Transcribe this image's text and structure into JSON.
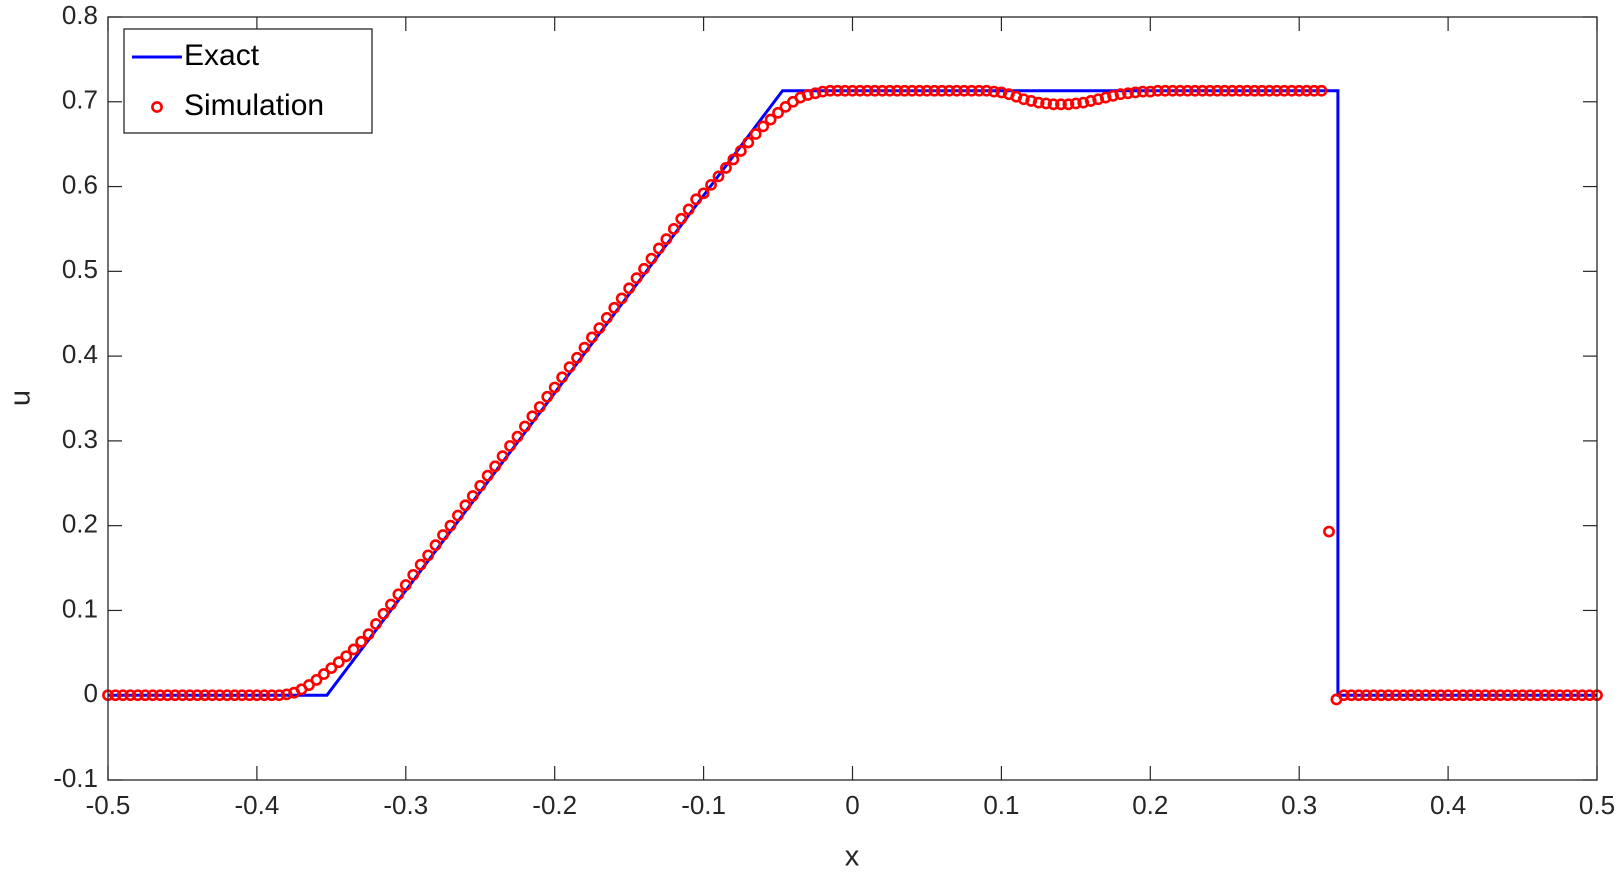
{
  "chart_data": {
    "type": "line",
    "xlabel": "x",
    "ylabel": "u",
    "xlim": [
      -0.5,
      0.5
    ],
    "xticks": [
      -0.5,
      -0.4,
      -0.3,
      -0.2,
      -0.1,
      0,
      0.1,
      0.2,
      0.3,
      0.4,
      0.5
    ],
    "ylim": [
      -0.1,
      0.8
    ],
    "yticks": [
      -0.1,
      0,
      0.1,
      0.2,
      0.3,
      0.4,
      0.5,
      0.6,
      0.7,
      0.8
    ],
    "grid": false,
    "legend": "upper left",
    "series": [
      {
        "name": "Exact",
        "type": "line",
        "color": "#0000ff",
        "x": [
          -0.5,
          -0.353,
          -0.047,
          0.326,
          0.326,
          0.5
        ],
        "values": [
          0,
          0,
          0.713,
          0.713,
          0,
          0
        ]
      },
      {
        "name": "Simulation",
        "type": "scatter",
        "color": "#ff0000",
        "x": [
          -0.5,
          -0.495,
          -0.49,
          -0.485,
          -0.48,
          -0.475,
          -0.47,
          -0.465,
          -0.46,
          -0.455,
          -0.45,
          -0.445,
          -0.44,
          -0.435,
          -0.43,
          -0.425,
          -0.42,
          -0.415,
          -0.41,
          -0.405,
          -0.4,
          -0.395,
          -0.39,
          -0.385,
          -0.38,
          -0.375,
          -0.37,
          -0.365,
          -0.36,
          -0.355,
          -0.35,
          -0.345,
          -0.34,
          -0.335,
          -0.33,
          -0.325,
          -0.32,
          -0.315,
          -0.31,
          -0.305,
          -0.3,
          -0.295,
          -0.29,
          -0.285,
          -0.28,
          -0.275,
          -0.27,
          -0.265,
          -0.26,
          -0.255,
          -0.25,
          -0.245,
          -0.24,
          -0.235,
          -0.23,
          -0.225,
          -0.22,
          -0.215,
          -0.21,
          -0.205,
          -0.2,
          -0.195,
          -0.19,
          -0.185,
          -0.18,
          -0.175,
          -0.17,
          -0.165,
          -0.16,
          -0.155,
          -0.15,
          -0.145,
          -0.14,
          -0.135,
          -0.13,
          -0.125,
          -0.12,
          -0.115,
          -0.11,
          -0.105,
          -0.1,
          -0.095,
          -0.09,
          -0.085,
          -0.08,
          -0.075,
          -0.07,
          -0.065,
          -0.06,
          -0.055,
          -0.05,
          -0.045,
          -0.04,
          -0.035,
          -0.03,
          -0.025,
          -0.02,
          -0.015,
          -0.01,
          -0.005,
          0,
          0.005,
          0.01,
          0.015,
          0.02,
          0.025,
          0.03,
          0.035,
          0.04,
          0.045,
          0.05,
          0.055,
          0.06,
          0.065,
          0.07,
          0.075,
          0.08,
          0.085,
          0.09,
          0.095,
          0.1,
          0.105,
          0.11,
          0.115,
          0.12,
          0.125,
          0.13,
          0.135,
          0.14,
          0.145,
          0.15,
          0.155,
          0.16,
          0.165,
          0.17,
          0.175,
          0.18,
          0.185,
          0.19,
          0.195,
          0.2,
          0.205,
          0.21,
          0.215,
          0.22,
          0.225,
          0.23,
          0.235,
          0.24,
          0.245,
          0.25,
          0.255,
          0.26,
          0.265,
          0.27,
          0.275,
          0.28,
          0.285,
          0.29,
          0.295,
          0.3,
          0.305,
          0.31,
          0.315,
          0.32,
          0.325,
          0.33,
          0.335,
          0.34,
          0.345,
          0.35,
          0.355,
          0.36,
          0.365,
          0.37,
          0.375,
          0.38,
          0.385,
          0.39,
          0.395,
          0.4,
          0.405,
          0.41,
          0.415,
          0.42,
          0.425,
          0.43,
          0.435,
          0.44,
          0.445,
          0.45,
          0.455,
          0.46,
          0.465,
          0.47,
          0.475,
          0.48,
          0.485,
          0.49,
          0.495,
          0.5
        ],
        "values": [
          0,
          0,
          0,
          0,
          0,
          0,
          0,
          0,
          0,
          0,
          0,
          0,
          0,
          0,
          0,
          0,
          0,
          0,
          0,
          0,
          0,
          0,
          0,
          0,
          0.001,
          0.003,
          0.007,
          0.012,
          0.018,
          0.025,
          0.032,
          0.039,
          0.046,
          0.054,
          0.063,
          0.072,
          0.084,
          0.096,
          0.107,
          0.119,
          0.13,
          0.142,
          0.154,
          0.165,
          0.177,
          0.189,
          0.2,
          0.212,
          0.224,
          0.235,
          0.247,
          0.259,
          0.27,
          0.282,
          0.294,
          0.305,
          0.317,
          0.329,
          0.34,
          0.352,
          0.363,
          0.375,
          0.387,
          0.398,
          0.41,
          0.422,
          0.433,
          0.445,
          0.457,
          0.468,
          0.48,
          0.492,
          0.503,
          0.515,
          0.527,
          0.538,
          0.55,
          0.562,
          0.573,
          0.585,
          0.592,
          0.602,
          0.612,
          0.622,
          0.632,
          0.642,
          0.652,
          0.662,
          0.671,
          0.679,
          0.687,
          0.694,
          0.7,
          0.705,
          0.708,
          0.71,
          0.712,
          0.713,
          0.713,
          0.713,
          0.713,
          0.713,
          0.713,
          0.713,
          0.713,
          0.713,
          0.713,
          0.713,
          0.713,
          0.713,
          0.713,
          0.713,
          0.713,
          0.713,
          0.713,
          0.713,
          0.713,
          0.713,
          0.713,
          0.712,
          0.711,
          0.709,
          0.706,
          0.703,
          0.701,
          0.699,
          0.698,
          0.697,
          0.697,
          0.697,
          0.698,
          0.699,
          0.701,
          0.703,
          0.705,
          0.707,
          0.709,
          0.71,
          0.711,
          0.712,
          0.712,
          0.713,
          0.713,
          0.713,
          0.713,
          0.713,
          0.713,
          0.713,
          0.713,
          0.713,
          0.713,
          0.713,
          0.713,
          0.713,
          0.713,
          0.713,
          0.713,
          0.713,
          0.713,
          0.713,
          0.713,
          0.713,
          0.713,
          0.713,
          0.193,
          -0.005,
          0,
          0,
          0,
          0,
          0,
          0,
          0,
          0,
          0,
          0,
          0,
          0,
          0,
          0,
          0,
          0,
          0,
          0,
          0,
          0,
          0,
          0,
          0,
          0,
          0,
          0,
          0,
          0,
          0,
          0,
          0,
          0,
          0,
          0,
          0
        ]
      }
    ]
  }
}
